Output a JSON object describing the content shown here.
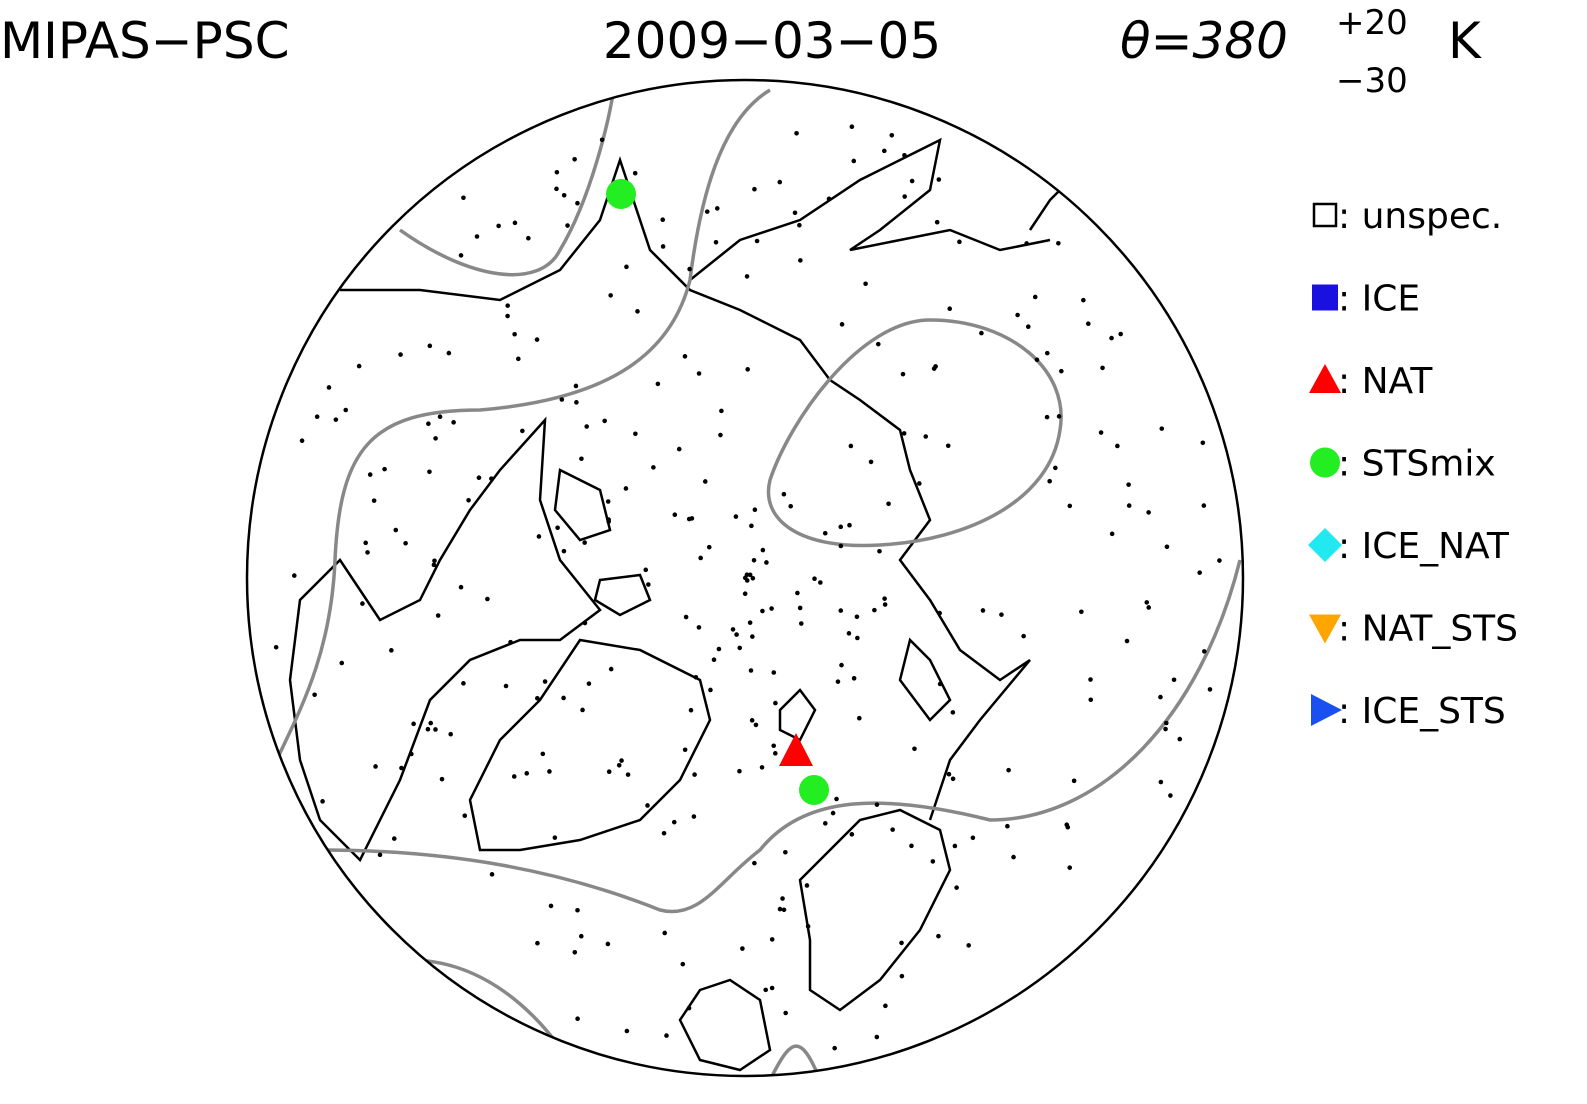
{
  "header": {
    "instrument": "MIPAS−PSC",
    "date": "2009−03−05",
    "level": "θ=380",
    "upper": "+20",
    "lower": "−30",
    "unit": "K"
  },
  "legend": {
    "items": [
      {
        "label": ": unspec.",
        "color": "#ffffff",
        "shape": "square-open"
      },
      {
        "label": ": ICE",
        "color": "#1a10e0",
        "shape": "square"
      },
      {
        "label": ": NAT",
        "color": "#ff0000",
        "shape": "triangle-up"
      },
      {
        "label": ": STSmix",
        "color": "#22ee22",
        "shape": "circle"
      },
      {
        "label": ": ICE_NAT",
        "color": "#22e8f0",
        "shape": "diamond"
      },
      {
        "label": ": NAT_STS",
        "color": "#ffa500",
        "shape": "triangle-down"
      },
      {
        "label": ": ICE_STS",
        "color": "#1a50f0",
        "shape": "triangle-right"
      }
    ]
  }
}
